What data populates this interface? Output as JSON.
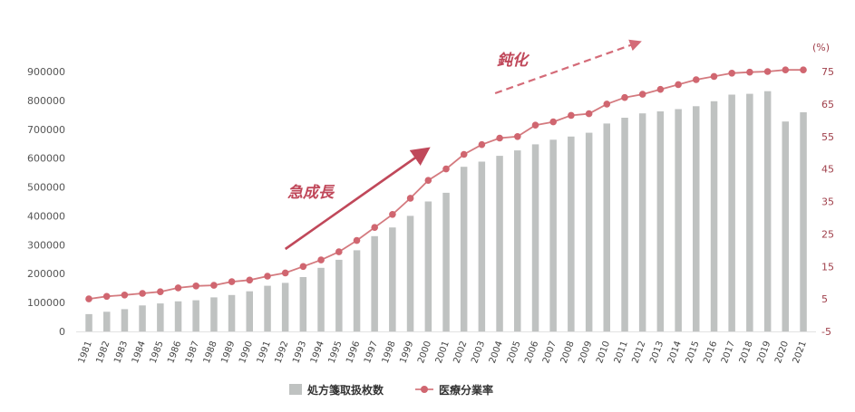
{
  "colors": {
    "bar": "#bfc2c1",
    "line": "#d47a7f",
    "marker": "#d06670",
    "right_axis": "#a0404b",
    "annotation": "#c0485a"
  },
  "chart_data": {
    "type": "bar",
    "combo": "bar+line",
    "categories": [
      "1981",
      "1982",
      "1983",
      "1984",
      "1985",
      "1986",
      "1987",
      "1988",
      "1989",
      "1990",
      "1991",
      "1992",
      "1993",
      "1994",
      "1995",
      "1996",
      "1997",
      "1998",
      "1999",
      "2000",
      "2001",
      "2002",
      "2003",
      "2004",
      "2005",
      "2006",
      "2007",
      "2008",
      "2009",
      "2010",
      "2011",
      "2012",
      "2013",
      "2014",
      "2015",
      "2016",
      "2017",
      "2018",
      "2019",
      "2020",
      "2021"
    ],
    "left_axis": {
      "ylim": [
        0,
        900000
      ],
      "ticks": [
        "0",
        "100000",
        "200000",
        "300000",
        "400000",
        "500000",
        "600000",
        "700000",
        "800000",
        "900000"
      ]
    },
    "right_axis": {
      "unit": "(%)",
      "ylim": [
        -5,
        75
      ],
      "ticks": [
        "-5",
        "5",
        "15",
        "25",
        "35",
        "45",
        "55",
        "65",
        "75"
      ]
    },
    "series": [
      {
        "name": "処方箋取扱枚数",
        "kind": "bar",
        "axis": "left",
        "values": [
          60000,
          68000,
          77000,
          90000,
          97000,
          104000,
          108000,
          118000,
          126000,
          139000,
          158000,
          168000,
          188000,
          220000,
          248000,
          281000,
          330000,
          360000,
          400000,
          450000,
          480000,
          570000,
          588000,
          608000,
          627000,
          648000,
          664000,
          675000,
          688000,
          720000,
          740000,
          755000,
          762000,
          770000,
          780000,
          797000,
          820000,
          823000,
          832000,
          727000,
          759000
        ]
      },
      {
        "name": "医療分業率",
        "kind": "line",
        "axis": "right",
        "values": [
          5.0,
          5.8,
          6.2,
          6.7,
          7.2,
          8.4,
          9.0,
          9.2,
          10.3,
          10.8,
          12.0,
          13.0,
          15.0,
          17.0,
          19.5,
          23.0,
          27.0,
          31.0,
          36.0,
          41.5,
          45.0,
          49.5,
          52.5,
          54.5,
          55.0,
          58.5,
          59.5,
          61.5,
          62.0,
          65.0,
          67.0,
          68.0,
          69.5,
          71.0,
          72.5,
          73.5,
          74.5,
          74.8,
          75.0,
          75.5,
          75.5
        ]
      }
    ],
    "annotations": [
      {
        "text": "急成長",
        "from_category": "1992",
        "to_category": "2000"
      },
      {
        "text": "鈍化",
        "from_category": "2004",
        "to_category": "2012"
      }
    ],
    "legend": {
      "position": "bottom-center",
      "entries": [
        "処方箋取扱枚数",
        "医療分業率"
      ]
    },
    "grid": false
  }
}
